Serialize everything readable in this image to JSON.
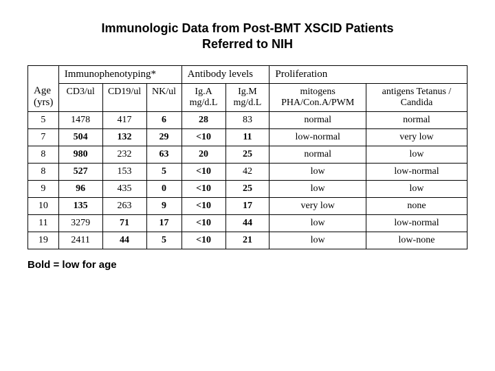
{
  "title_line1": "Immunologic Data from Post-BMT XSCID Patients",
  "title_line2": "Referred to NIH",
  "group_headers": {
    "immuno": "Immunophenotyping*",
    "antibody": "Antibody levels",
    "prolif": "Proliferation"
  },
  "col_headers": {
    "age": "Age (yrs)",
    "cd3": "CD3/ul",
    "cd19": "CD19/ul",
    "nk": "NK/ul",
    "iga": "Ig.A mg/d.L",
    "igm": "Ig.M mg/d.L",
    "mitogens": "mitogens PHA/Con.A/PWM",
    "antigens": "antigens Tetanus / Candida"
  },
  "rows": [
    {
      "age": "5",
      "cd3": {
        "v": "1478",
        "b": false
      },
      "cd19": {
        "v": "417",
        "b": false
      },
      "nk": {
        "v": "6",
        "b": true
      },
      "iga": {
        "v": "28",
        "b": true
      },
      "igm": {
        "v": "83",
        "b": false
      },
      "mit": {
        "v": "normal",
        "b": false
      },
      "ant": {
        "v": "normal",
        "b": false
      }
    },
    {
      "age": "7",
      "cd3": {
        "v": "504",
        "b": true
      },
      "cd19": {
        "v": "132",
        "b": true
      },
      "nk": {
        "v": "29",
        "b": true
      },
      "iga": {
        "v": "<10",
        "b": true
      },
      "igm": {
        "v": "11",
        "b": true
      },
      "mit": {
        "v": "low-normal",
        "b": false
      },
      "ant": {
        "v": "very low",
        "b": false
      }
    },
    {
      "age": "8",
      "cd3": {
        "v": "980",
        "b": true
      },
      "cd19": {
        "v": "232",
        "b": false
      },
      "nk": {
        "v": "63",
        "b": true
      },
      "iga": {
        "v": "20",
        "b": true
      },
      "igm": {
        "v": "25",
        "b": true
      },
      "mit": {
        "v": "normal",
        "b": false
      },
      "ant": {
        "v": "low",
        "b": false
      }
    },
    {
      "age": "8",
      "cd3": {
        "v": "527",
        "b": true
      },
      "cd19": {
        "v": "153",
        "b": false
      },
      "nk": {
        "v": "5",
        "b": true
      },
      "iga": {
        "v": "<10",
        "b": true
      },
      "igm": {
        "v": "42",
        "b": false
      },
      "mit": {
        "v": "low",
        "b": false
      },
      "ant": {
        "v": "low-normal",
        "b": false
      }
    },
    {
      "age": "9",
      "cd3": {
        "v": "96",
        "b": true
      },
      "cd19": {
        "v": "435",
        "b": false
      },
      "nk": {
        "v": "0",
        "b": true
      },
      "iga": {
        "v": "<10",
        "b": true
      },
      "igm": {
        "v": "25",
        "b": true
      },
      "mit": {
        "v": "low",
        "b": false
      },
      "ant": {
        "v": "low",
        "b": false
      }
    },
    {
      "age": "10",
      "cd3": {
        "v": "135",
        "b": true
      },
      "cd19": {
        "v": "263",
        "b": false
      },
      "nk": {
        "v": "9",
        "b": true
      },
      "iga": {
        "v": "<10",
        "b": true
      },
      "igm": {
        "v": "17",
        "b": true
      },
      "mit": {
        "v": "very low",
        "b": false
      },
      "ant": {
        "v": "none",
        "b": false
      }
    },
    {
      "age": "11",
      "cd3": {
        "v": "3279",
        "b": false
      },
      "cd19": {
        "v": "71",
        "b": true
      },
      "nk": {
        "v": "17",
        "b": true
      },
      "iga": {
        "v": "<10",
        "b": true
      },
      "igm": {
        "v": "44",
        "b": true
      },
      "mit": {
        "v": "low",
        "b": false
      },
      "ant": {
        "v": "low-normal",
        "b": false
      }
    },
    {
      "age": "19",
      "cd3": {
        "v": "2411",
        "b": false
      },
      "cd19": {
        "v": "44",
        "b": true
      },
      "nk": {
        "v": "5",
        "b": true
      },
      "iga": {
        "v": "<10",
        "b": true
      },
      "igm": {
        "v": "21",
        "b": true
      },
      "mit": {
        "v": "low",
        "b": false
      },
      "ant": {
        "v": "low-none",
        "b": false
      }
    }
  ],
  "footnote": "Bold = low for age",
  "style": {
    "title_fontsize": 18,
    "cell_fontsize": 14,
    "border_color": "#000000",
    "background_color": "#ffffff",
    "text_color": "#000000",
    "col_widths_pct": [
      7,
      10,
      10,
      8,
      10,
      10,
      22,
      23
    ]
  }
}
